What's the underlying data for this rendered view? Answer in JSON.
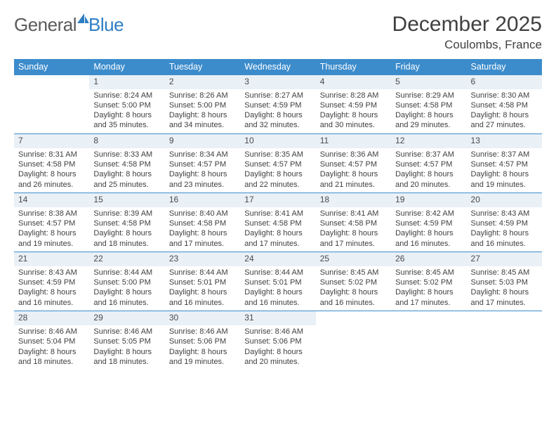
{
  "logo": {
    "word1": "General",
    "word2": "Blue"
  },
  "title": "December 2025",
  "location": "Coulombs, France",
  "colors": {
    "header_bg": "#3c8ccc",
    "daynum_bg": "#e9f0f6",
    "daynum_border": "#3c8ccc",
    "text": "#404040",
    "logo_blue": "#2f7dc4"
  },
  "weekdays": [
    "Sunday",
    "Monday",
    "Tuesday",
    "Wednesday",
    "Thursday",
    "Friday",
    "Saturday"
  ],
  "weeks": [
    [
      null,
      {
        "n": "1",
        "sr": "8:24 AM",
        "ss": "5:00 PM",
        "dl": "8 hours and 35 minutes."
      },
      {
        "n": "2",
        "sr": "8:26 AM",
        "ss": "5:00 PM",
        "dl": "8 hours and 34 minutes."
      },
      {
        "n": "3",
        "sr": "8:27 AM",
        "ss": "4:59 PM",
        "dl": "8 hours and 32 minutes."
      },
      {
        "n": "4",
        "sr": "8:28 AM",
        "ss": "4:59 PM",
        "dl": "8 hours and 30 minutes."
      },
      {
        "n": "5",
        "sr": "8:29 AM",
        "ss": "4:58 PM",
        "dl": "8 hours and 29 minutes."
      },
      {
        "n": "6",
        "sr": "8:30 AM",
        "ss": "4:58 PM",
        "dl": "8 hours and 27 minutes."
      }
    ],
    [
      {
        "n": "7",
        "sr": "8:31 AM",
        "ss": "4:58 PM",
        "dl": "8 hours and 26 minutes."
      },
      {
        "n": "8",
        "sr": "8:33 AM",
        "ss": "4:58 PM",
        "dl": "8 hours and 25 minutes."
      },
      {
        "n": "9",
        "sr": "8:34 AM",
        "ss": "4:57 PM",
        "dl": "8 hours and 23 minutes."
      },
      {
        "n": "10",
        "sr": "8:35 AM",
        "ss": "4:57 PM",
        "dl": "8 hours and 22 minutes."
      },
      {
        "n": "11",
        "sr": "8:36 AM",
        "ss": "4:57 PM",
        "dl": "8 hours and 21 minutes."
      },
      {
        "n": "12",
        "sr": "8:37 AM",
        "ss": "4:57 PM",
        "dl": "8 hours and 20 minutes."
      },
      {
        "n": "13",
        "sr": "8:37 AM",
        "ss": "4:57 PM",
        "dl": "8 hours and 19 minutes."
      }
    ],
    [
      {
        "n": "14",
        "sr": "8:38 AM",
        "ss": "4:57 PM",
        "dl": "8 hours and 19 minutes."
      },
      {
        "n": "15",
        "sr": "8:39 AM",
        "ss": "4:58 PM",
        "dl": "8 hours and 18 minutes."
      },
      {
        "n": "16",
        "sr": "8:40 AM",
        "ss": "4:58 PM",
        "dl": "8 hours and 17 minutes."
      },
      {
        "n": "17",
        "sr": "8:41 AM",
        "ss": "4:58 PM",
        "dl": "8 hours and 17 minutes."
      },
      {
        "n": "18",
        "sr": "8:41 AM",
        "ss": "4:58 PM",
        "dl": "8 hours and 17 minutes."
      },
      {
        "n": "19",
        "sr": "8:42 AM",
        "ss": "4:59 PM",
        "dl": "8 hours and 16 minutes."
      },
      {
        "n": "20",
        "sr": "8:43 AM",
        "ss": "4:59 PM",
        "dl": "8 hours and 16 minutes."
      }
    ],
    [
      {
        "n": "21",
        "sr": "8:43 AM",
        "ss": "4:59 PM",
        "dl": "8 hours and 16 minutes."
      },
      {
        "n": "22",
        "sr": "8:44 AM",
        "ss": "5:00 PM",
        "dl": "8 hours and 16 minutes."
      },
      {
        "n": "23",
        "sr": "8:44 AM",
        "ss": "5:01 PM",
        "dl": "8 hours and 16 minutes."
      },
      {
        "n": "24",
        "sr": "8:44 AM",
        "ss": "5:01 PM",
        "dl": "8 hours and 16 minutes."
      },
      {
        "n": "25",
        "sr": "8:45 AM",
        "ss": "5:02 PM",
        "dl": "8 hours and 16 minutes."
      },
      {
        "n": "26",
        "sr": "8:45 AM",
        "ss": "5:02 PM",
        "dl": "8 hours and 17 minutes."
      },
      {
        "n": "27",
        "sr": "8:45 AM",
        "ss": "5:03 PM",
        "dl": "8 hours and 17 minutes."
      }
    ],
    [
      {
        "n": "28",
        "sr": "8:46 AM",
        "ss": "5:04 PM",
        "dl": "8 hours and 18 minutes."
      },
      {
        "n": "29",
        "sr": "8:46 AM",
        "ss": "5:05 PM",
        "dl": "8 hours and 18 minutes."
      },
      {
        "n": "30",
        "sr": "8:46 AM",
        "ss": "5:06 PM",
        "dl": "8 hours and 19 minutes."
      },
      {
        "n": "31",
        "sr": "8:46 AM",
        "ss": "5:06 PM",
        "dl": "8 hours and 20 minutes."
      },
      null,
      null,
      null
    ]
  ],
  "labels": {
    "sunrise": "Sunrise:",
    "sunset": "Sunset:",
    "daylight": "Daylight:"
  }
}
